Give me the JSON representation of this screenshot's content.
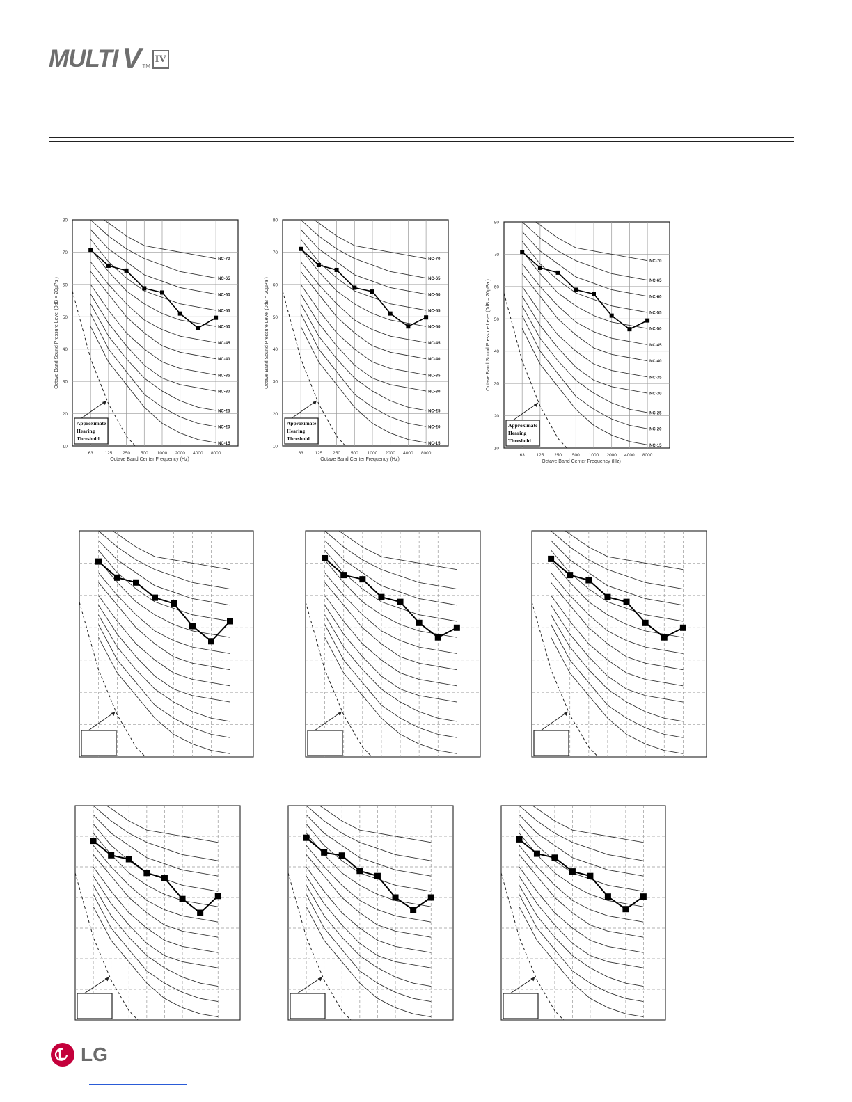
{
  "header": {
    "logo_text": "MULTI",
    "logo_v": "V",
    "logo_tm": "TM",
    "logo_generation": "IV"
  },
  "footer": {
    "brand": "LG"
  },
  "colors": {
    "logo_gray": "#6e6e6e",
    "lg_red": "#c4003b",
    "rule": "#222222"
  },
  "chart_data": [
    {
      "type": "line",
      "style": "labeled",
      "xlabel": "Octave Band Center Frequency (Hz)",
      "ylabel": "Octave Band Sound Pressure Level (0dB = 20µPa )",
      "categories": [
        "63",
        "125",
        "250",
        "500",
        "1000",
        "2000",
        "4000",
        "8000"
      ],
      "ylim": [
        10,
        80
      ],
      "yticks": [
        10,
        20,
        30,
        40,
        50,
        60,
        70,
        80
      ],
      "grid": true,
      "nc_curve_labels": [
        "NC-70",
        "NC-65",
        "NC-60",
        "NC-55",
        "NC-50",
        "NC-45",
        "NC-40",
        "NC-35",
        "NC-30",
        "NC-25",
        "NC-20",
        "NC-15"
      ],
      "threshold_label": [
        "Approximate",
        "Hearing",
        "Threshold"
      ],
      "series": [
        {
          "values": [
            70.7,
            65.8,
            64.3,
            58.8,
            57.5,
            51.0,
            46.5,
            49.7
          ]
        }
      ]
    },
    {
      "type": "line",
      "style": "labeled",
      "xlabel": "Octave Band Center Frequency (Hz)",
      "ylabel": "Octave Band Sound Pressure Level (0dB = 20µPa )",
      "categories": [
        "63",
        "125",
        "250",
        "500",
        "1000",
        "2000",
        "4000",
        "8000"
      ],
      "ylim": [
        10,
        80
      ],
      "yticks": [
        10,
        20,
        30,
        40,
        50,
        60,
        70,
        80
      ],
      "grid": true,
      "nc_curve_labels": [
        "NC-70",
        "NC-65",
        "NC-60",
        "NC-55",
        "NC-50",
        "NC-45",
        "NC-40",
        "NC-35",
        "NC-30",
        "NC-25",
        "NC-20",
        "NC-15"
      ],
      "threshold_label": [
        "Approximate",
        "Hearing",
        "Threshold"
      ],
      "series": [
        {
          "values": [
            71.0,
            66.0,
            64.5,
            59.0,
            57.8,
            51.0,
            47.0,
            49.8
          ]
        }
      ]
    },
    {
      "type": "line",
      "style": "labeled",
      "xlabel": "Octave Band Center Frequency (Hz)",
      "ylabel": "Octave Band Sound Pressure Level (0dB = 20µPa )",
      "categories": [
        "63",
        "125",
        "250",
        "500",
        "1000",
        "2000",
        "4000",
        "8000"
      ],
      "ylim": [
        10,
        80
      ],
      "yticks": [
        10,
        20,
        30,
        40,
        50,
        60,
        70,
        80
      ],
      "grid": true,
      "nc_curve_labels": [
        "NC-70",
        "NC-65",
        "NC-60",
        "NC-55",
        "NC-50",
        "NC-45",
        "NC-40",
        "NC-35",
        "NC-30",
        "NC-25",
        "NC-20",
        "NC-15"
      ],
      "threshold_label": [
        "Approximate",
        "Hearing",
        "Threshold"
      ],
      "series": [
        {
          "values": [
            70.7,
            65.8,
            64.3,
            59.0,
            57.7,
            51.0,
            46.8,
            49.5
          ]
        }
      ]
    },
    {
      "type": "line",
      "style": "bare",
      "ylim": [
        10,
        80
      ],
      "grid": true,
      "series": [
        {
          "values": [
            70.5,
            65.5,
            64.0,
            59.3,
            57.5,
            50.5,
            45.8,
            52.0
          ]
        }
      ]
    },
    {
      "type": "line",
      "style": "bare",
      "ylim": [
        10,
        80
      ],
      "grid": true,
      "series": [
        {
          "values": [
            71.5,
            66.3,
            65.0,
            59.5,
            58.0,
            51.5,
            47.0,
            50.0
          ]
        }
      ]
    },
    {
      "type": "line",
      "style": "bare",
      "ylim": [
        10,
        80
      ],
      "grid": true,
      "series": [
        {
          "values": [
            71.3,
            66.3,
            64.7,
            59.5,
            58.0,
            51.5,
            47.0,
            50.0
          ]
        }
      ]
    },
    {
      "type": "line",
      "style": "bare",
      "ylim": [
        10,
        80
      ],
      "grid": true,
      "series": [
        {
          "values": [
            68.5,
            63.8,
            62.5,
            58.0,
            56.3,
            49.5,
            45.0,
            50.5
          ]
        }
      ]
    },
    {
      "type": "line",
      "style": "bare",
      "ylim": [
        10,
        80
      ],
      "grid": true,
      "series": [
        {
          "values": [
            69.5,
            64.7,
            63.7,
            58.7,
            57.0,
            50.0,
            46.0,
            50.0
          ]
        }
      ]
    },
    {
      "type": "line",
      "style": "bare",
      "ylim": [
        10,
        80
      ],
      "grid": true,
      "series": [
        {
          "values": [
            69.0,
            64.3,
            63.0,
            58.5,
            57.0,
            50.3,
            46.2,
            50.3
          ]
        }
      ]
    }
  ]
}
